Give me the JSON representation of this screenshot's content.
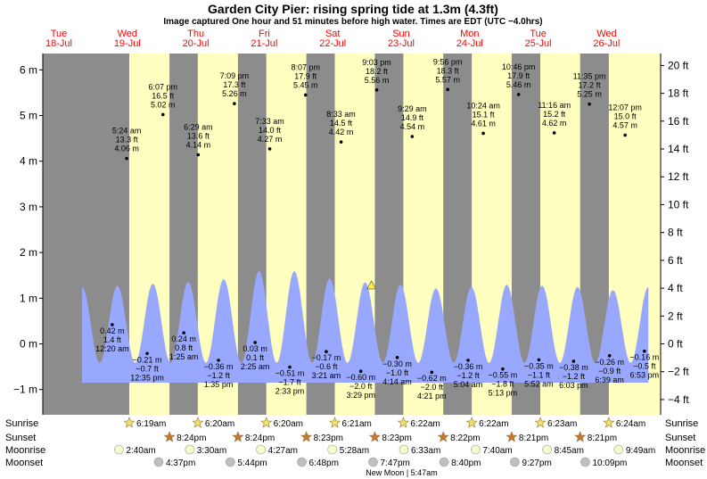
{
  "chart_data": {
    "type": "area",
    "title": "Garden City Pier: rising  spring tide at 1.3m (4.3ft)",
    "subtitle": "Image captured One hour and 51 minutes before high water. Times are EDT (UTC −4.0hrs)",
    "days": [
      {
        "dow": "Tue",
        "date": "18-Jul"
      },
      {
        "dow": "Wed",
        "date": "19-Jul"
      },
      {
        "dow": "Thu",
        "date": "20-Jul"
      },
      {
        "dow": "Fri",
        "date": "21-Jul"
      },
      {
        "dow": "Sat",
        "date": "22-Jul"
      },
      {
        "dow": "Sun",
        "date": "23-Jul"
      },
      {
        "dow": "Mon",
        "date": "24-Jul"
      },
      {
        "dow": "Tue",
        "date": "25-Jul"
      },
      {
        "dow": "Wed",
        "date": "26-Jul"
      }
    ],
    "y_left": {
      "unit": "m",
      "ylim": [
        -1.45,
        6.4
      ],
      "ticks": [
        -1,
        0,
        1,
        2,
        3,
        4,
        5,
        6
      ],
      "labels": [
        "−1 m",
        "0 m",
        "1 m",
        "2 m",
        "3 m",
        "4 m",
        "5 m",
        "6 m"
      ]
    },
    "y_right": {
      "unit": "ft",
      "ticks": [
        -4,
        -2,
        0,
        2,
        4,
        6,
        8,
        10,
        12,
        14,
        16,
        18,
        20
      ],
      "labels": [
        "−4 ft",
        "−2 ft",
        "0 ft",
        "2 ft",
        "4 ft",
        "6 ft",
        "8 ft",
        "10 ft",
        "12 ft",
        "14 ft",
        "16 ft",
        "18 ft",
        "20 ft"
      ]
    },
    "daylight": [
      {
        "sunrise": "2023-07-19 06:19",
        "sunset": "2023-07-19 20:24"
      },
      {
        "sunrise": "2023-07-20 06:20",
        "sunset": "2023-07-20 20:24"
      },
      {
        "sunrise": "2023-07-21 06:20",
        "sunset": "2023-07-21 20:23"
      },
      {
        "sunrise": "2023-07-22 06:21",
        "sunset": "2023-07-22 20:23"
      },
      {
        "sunrise": "2023-07-23 06:22",
        "sunset": "2023-07-23 20:22"
      },
      {
        "sunrise": "2023-07-24 06:22",
        "sunset": "2023-07-24 20:21"
      },
      {
        "sunrise": "2023-07-25 06:23",
        "sunset": "2023-07-25 20:21"
      },
      {
        "sunrise": "2023-07-26 06:24",
        "sunset": ""
      }
    ],
    "tides": [
      {
        "t": "2023-07-19 00:20",
        "m": 0.42,
        "type": "low",
        "time": "12:20 am",
        "m_label": "0.42 m",
        "ft_label": "1.4 ft"
      },
      {
        "t": "2023-07-19 05:24",
        "m": 4.06,
        "type": "high",
        "time": "5:24 am",
        "m_label": "4.06 m",
        "ft_label": "13.3 ft"
      },
      {
        "t": "2023-07-19 12:35",
        "m": -0.21,
        "type": "low",
        "time": "12:35 pm",
        "m_label": "−0.21 m",
        "ft_label": "−0.7 ft"
      },
      {
        "t": "2023-07-19 18:07",
        "m": 5.02,
        "type": "high",
        "time": "6:07 pm",
        "m_label": "5.02 m",
        "ft_label": "16.5 ft"
      },
      {
        "t": "2023-07-20 01:25",
        "m": 0.24,
        "type": "low",
        "time": "1:25 am",
        "m_label": "0.24 m",
        "ft_label": "0.8 ft"
      },
      {
        "t": "2023-07-20 06:29",
        "m": 4.14,
        "type": "high",
        "time": "6:29 am",
        "m_label": "4.14 m",
        "ft_label": "13.6 ft"
      },
      {
        "t": "2023-07-20 13:35",
        "m": -0.36,
        "type": "low",
        "time": "1:35 pm",
        "m_label": "−0.36 m",
        "ft_label": "−1.2 ft"
      },
      {
        "t": "2023-07-20 19:09",
        "m": 5.26,
        "type": "high",
        "time": "7:09 pm",
        "m_label": "5.26 m",
        "ft_label": "17.3 ft"
      },
      {
        "t": "2023-07-21 02:25",
        "m": 0.03,
        "type": "low",
        "time": "2:25 am",
        "m_label": "0.03 m",
        "ft_label": "0.1 ft"
      },
      {
        "t": "2023-07-21 07:33",
        "m": 4.27,
        "type": "high",
        "time": "7:33 am",
        "m_label": "4.27 m",
        "ft_label": "14.0 ft"
      },
      {
        "t": "2023-07-21 14:33",
        "m": -0.51,
        "type": "low",
        "time": "2:33 pm",
        "m_label": "−0.51 m",
        "ft_label": "−1.7 ft"
      },
      {
        "t": "2023-07-21 20:07",
        "m": 5.45,
        "type": "high",
        "time": "8:07 pm",
        "m_label": "5.45 m",
        "ft_label": "17.9 ft"
      },
      {
        "t": "2023-07-22 03:21",
        "m": -0.17,
        "type": "low",
        "time": "3:21 am",
        "m_label": "−0.17 m",
        "ft_label": "−0.6 ft"
      },
      {
        "t": "2023-07-22 08:33",
        "m": 4.42,
        "type": "high",
        "time": "8:33 am",
        "m_label": "4.42 m",
        "ft_label": "14.5 ft"
      },
      {
        "t": "2023-07-22 15:29",
        "m": -0.6,
        "type": "low",
        "time": "3:29 pm",
        "m_label": "−0.60 m",
        "ft_label": "−2.0 ft"
      },
      {
        "t": "2023-07-22 21:03",
        "m": 5.56,
        "type": "high",
        "time": "9:03 pm",
        "m_label": "5.56 m",
        "ft_label": "18.2 ft"
      },
      {
        "t": "2023-07-23 04:14",
        "m": -0.3,
        "type": "low",
        "time": "4:14 am",
        "m_label": "−0.30 m",
        "ft_label": "−1.0 ft"
      },
      {
        "t": "2023-07-23 09:29",
        "m": 4.54,
        "type": "high",
        "time": "9:29 am",
        "m_label": "4.54 m",
        "ft_label": "14.9 ft"
      },
      {
        "t": "2023-07-23 16:21",
        "m": -0.62,
        "type": "low",
        "time": "4:21 pm",
        "m_label": "−0.62 m",
        "ft_label": "−2.0 ft"
      },
      {
        "t": "2023-07-23 21:56",
        "m": 5.57,
        "type": "high",
        "time": "9:56 pm",
        "m_label": "5.57 m",
        "ft_label": "18.3 ft"
      },
      {
        "t": "2023-07-24 05:04",
        "m": -0.36,
        "type": "low",
        "time": "5:04 am",
        "m_label": "−0.36 m",
        "ft_label": "−1.2 ft"
      },
      {
        "t": "2023-07-24 10:24",
        "m": 4.61,
        "type": "high",
        "time": "10:24 am",
        "m_label": "4.61 m",
        "ft_label": "15.1 ft"
      },
      {
        "t": "2023-07-24 17:13",
        "m": -0.55,
        "type": "low",
        "time": "5:13 pm",
        "m_label": "−0.55 m",
        "ft_label": "−1.8 ft"
      },
      {
        "t": "2023-07-24 22:46",
        "m": 5.46,
        "type": "high",
        "time": "10:46 pm",
        "m_label": "5.46 m",
        "ft_label": "17.9 ft"
      },
      {
        "t": "2023-07-25 05:52",
        "m": -0.35,
        "type": "low",
        "time": "5:52 am",
        "m_label": "−0.35 m",
        "ft_label": "−1.1 ft"
      },
      {
        "t": "2023-07-25 11:16",
        "m": 4.62,
        "type": "high",
        "time": "11:16 am",
        "m_label": "4.62 m",
        "ft_label": "15.2 ft"
      },
      {
        "t": "2023-07-25 18:03",
        "m": -0.38,
        "type": "low",
        "time": "6:03 pm",
        "m_label": "−0.38 m",
        "ft_label": "−1.2 ft"
      },
      {
        "t": "2023-07-25 23:35",
        "m": 5.25,
        "type": "high",
        "time": "11:35 pm",
        "m_label": "5.25 m",
        "ft_label": "17.2 ft"
      },
      {
        "t": "2023-07-26 06:39",
        "m": -0.26,
        "type": "low",
        "time": "6:39 am",
        "m_label": "−0.26 m",
        "ft_label": "−0.9 ft"
      },
      {
        "t": "2023-07-26 12:07",
        "m": 4.57,
        "type": "high",
        "time": "12:07 pm",
        "m_label": "4.57 m",
        "ft_label": "15.0 ft"
      },
      {
        "t": "2023-07-26 18:53",
        "m": -0.16,
        "type": "low",
        "time": "6:53 pm",
        "m_label": "−0.16 m",
        "ft_label": "−0.5 ft"
      }
    ],
    "current": {
      "t": "2023-07-22 19:12",
      "m": 1.3
    },
    "lunar_heights": [
      1.25,
      1.28,
      1.32,
      1.36,
      1.42,
      1.6,
      1.6,
      1.44,
      1.35,
      1.3,
      1.22,
      1.25,
      1.3,
      1.28,
      1.25,
      1.18,
      1.25
    ],
    "rows": {
      "sunrise": {
        "label": "Sunrise",
        "color": "#f5e070",
        "items": [
          {
            "t": "2023-07-19 06:19",
            "text": "6:19am"
          },
          {
            "t": "2023-07-20 06:20",
            "text": "6:20am"
          },
          {
            "t": "2023-07-21 06:20",
            "text": "6:20am"
          },
          {
            "t": "2023-07-22 06:21",
            "text": "6:21am"
          },
          {
            "t": "2023-07-23 06:22",
            "text": "6:22am"
          },
          {
            "t": "2023-07-24 06:22",
            "text": "6:22am"
          },
          {
            "t": "2023-07-25 06:23",
            "text": "6:23am"
          },
          {
            "t": "2023-07-26 06:24",
            "text": "6:24am"
          }
        ]
      },
      "sunset": {
        "label": "Sunset",
        "color": "#c8743c",
        "items": [
          {
            "t": "2023-07-19 20:24",
            "text": "8:24pm"
          },
          {
            "t": "2023-07-20 20:24",
            "text": "8:24pm"
          },
          {
            "t": "2023-07-21 20:23",
            "text": "8:23pm"
          },
          {
            "t": "2023-07-22 20:23",
            "text": "8:23pm"
          },
          {
            "t": "2023-07-23 20:22",
            "text": "8:22pm"
          },
          {
            "t": "2023-07-24 20:21",
            "text": "8:21pm"
          },
          {
            "t": "2023-07-25 20:21",
            "text": "8:21pm"
          }
        ]
      },
      "moonrise": {
        "label": "Moonrise",
        "color": "#fafac8",
        "items": [
          {
            "t": "2023-07-19 02:40",
            "text": "2:40am"
          },
          {
            "t": "2023-07-20 03:30",
            "text": "3:30am"
          },
          {
            "t": "2023-07-21 04:27",
            "text": "4:27am"
          },
          {
            "t": "2023-07-22 05:28",
            "text": "5:28am"
          },
          {
            "t": "2023-07-23 06:33",
            "text": "6:33am"
          },
          {
            "t": "2023-07-24 07:40",
            "text": "7:40am"
          },
          {
            "t": "2023-07-25 08:45",
            "text": "8:45am"
          },
          {
            "t": "2023-07-26 09:49",
            "text": "9:49am"
          }
        ]
      },
      "moonset": {
        "label": "Moonset",
        "color": "#c0c0b8",
        "items": [
          {
            "t": "2023-07-19 16:37",
            "text": "4:37pm"
          },
          {
            "t": "2023-07-20 17:44",
            "text": "5:44pm"
          },
          {
            "t": "2023-07-21 18:48",
            "text": "6:48pm"
          },
          {
            "t": "2023-07-22 19:47",
            "text": "7:47pm"
          },
          {
            "t": "2023-07-23 20:40",
            "text": "8:40pm"
          },
          {
            "t": "2023-07-24 21:27",
            "text": "9:27pm"
          },
          {
            "t": "2023-07-25 22:09",
            "text": "10:09pm"
          }
        ]
      }
    },
    "moon_phase": {
      "t": "2023-07-23 05:47",
      "text": "New Moon | 5:47am"
    },
    "colors": {
      "night": "#8c8c8c",
      "day": "#ffffc0",
      "tide": "#99a8ff",
      "sat_text": "#ff0000",
      "sun_text": "#ff0000",
      "weekday_text": "#ff0000",
      "current_marker": "#ffee44"
    }
  }
}
